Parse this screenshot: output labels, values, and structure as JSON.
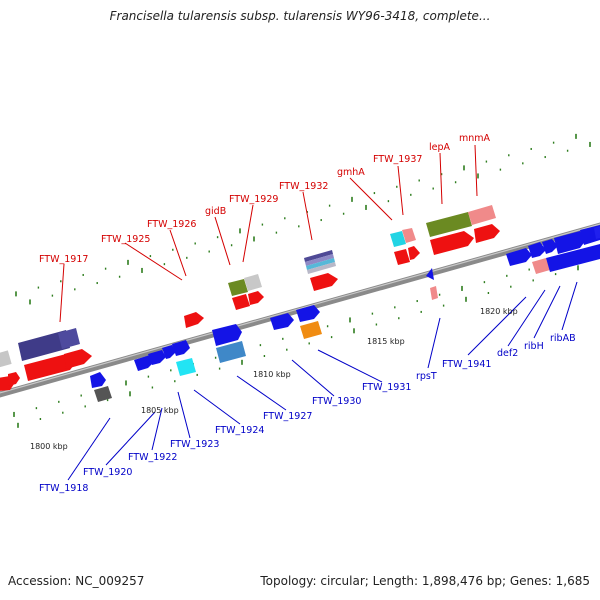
{
  "title": "Francisella tularensis subsp. tularensis WY96-3418, complete...",
  "footer": {
    "accession": "Accession: NC_009257",
    "summary": "Topology: circular; Length: 1,898,476 bp; Genes: 1,685"
  },
  "colors": {
    "backbone": "#8a8a8a",
    "forward_label": "#d40000",
    "reverse_label": "#0000c8",
    "tick": "#2e7d1e"
  },
  "scale_labels": [
    {
      "text": "1800 kbp",
      "kbp": 1800
    },
    {
      "text": "1805 kbp",
      "kbp": 1805
    },
    {
      "text": "1810 kbp",
      "kbp": 1810
    },
    {
      "text": "1815 kbp",
      "kbp": 1815
    },
    {
      "text": "1820 kbp",
      "kbp": 1820
    }
  ],
  "forward_genes": [
    {
      "name": "FTW_1917"
    },
    {
      "name": "FTW_1925"
    },
    {
      "name": "FTW_1926"
    },
    {
      "name": "gidB"
    },
    {
      "name": "FTW_1929"
    },
    {
      "name": "FTW_1932"
    },
    {
      "name": "gmhA"
    },
    {
      "name": "FTW_1937"
    },
    {
      "name": "lepA"
    },
    {
      "name": "mnmA"
    }
  ],
  "reverse_genes": [
    {
      "name": "FTW_1918"
    },
    {
      "name": "FTW_1920"
    },
    {
      "name": "FTW_1922"
    },
    {
      "name": "FTW_1923"
    },
    {
      "name": "FTW_1924"
    },
    {
      "name": "FTW_1927"
    },
    {
      "name": "FTW_1930"
    },
    {
      "name": "FTW_1931"
    },
    {
      "name": "rpsT"
    },
    {
      "name": "FTW_1941"
    },
    {
      "name": "def2"
    },
    {
      "name": "ribH"
    },
    {
      "name": "ribAB"
    }
  ]
}
